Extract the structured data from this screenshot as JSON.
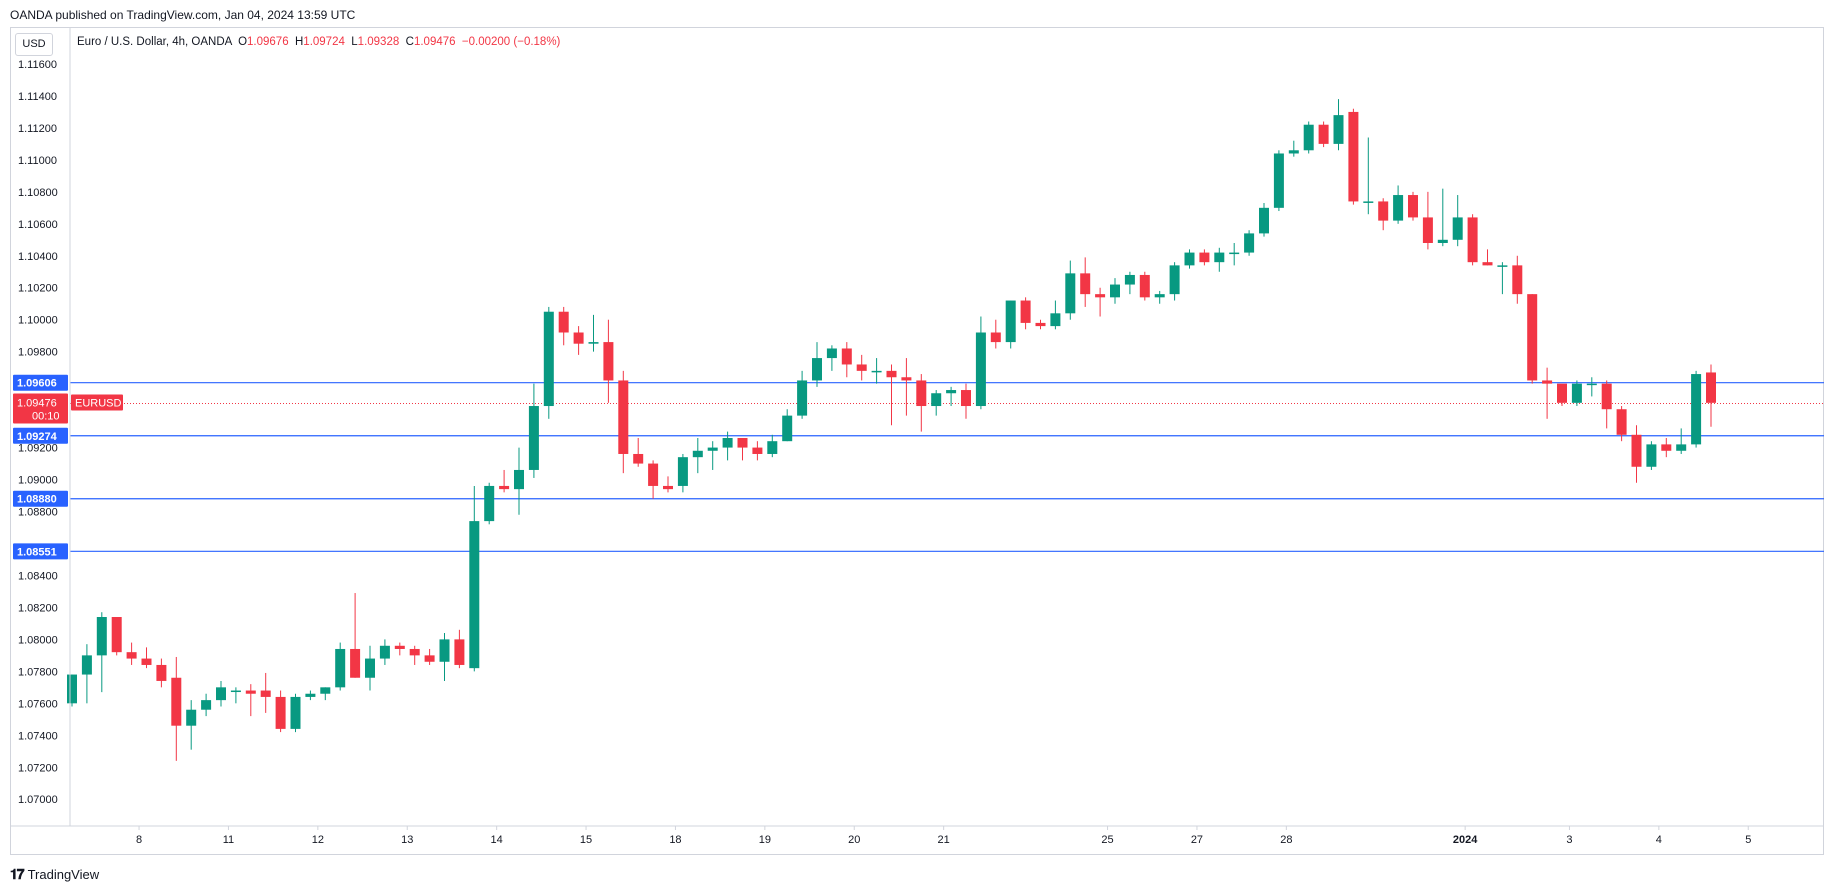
{
  "publisher_line": "OANDA published on TradingView.com, Jan 04, 2024 13:59 UTC",
  "currency_button": "USD",
  "legend": {
    "symbol": "Euro / U.S. Dollar, 4h, OANDA",
    "o_label": "O",
    "o_value": "1.09676",
    "h_label": "H",
    "h_value": "1.09724",
    "l_label": "L",
    "l_value": "1.09328",
    "c_label": "C",
    "c_value": "1.09476",
    "change": "−0.00200 (−0.18%)"
  },
  "footer": {
    "logo_icon": "tradingview-logo-icon",
    "brand": "TradingView"
  },
  "colors": {
    "up": "#089981",
    "down": "#f23645",
    "level_line": "#2962ff",
    "level_label_bg": "#2962ff",
    "price_label_bg": "#f23645"
  },
  "chart_data": {
    "type": "candlestick",
    "title": "Euro / U.S. Dollar, 4h, OANDA",
    "ylim": [
      1.0687,
      1.1175
    ],
    "y_ticks": [
      "1.11600",
      "1.11400",
      "1.11200",
      "1.11000",
      "1.10800",
      "1.10600",
      "1.10400",
      "1.10200",
      "1.10000",
      "1.09800",
      "1.09200",
      "1.09000",
      "1.08800",
      "1.08400",
      "1.08200",
      "1.08000",
      "1.07800",
      "1.07600",
      "1.07400",
      "1.07200",
      "1.07000"
    ],
    "x_ticks": [
      {
        "label": "8",
        "idx": 4.5
      },
      {
        "label": "11",
        "idx": 10.5
      },
      {
        "label": "12",
        "idx": 16.5
      },
      {
        "label": "13",
        "idx": 22.5
      },
      {
        "label": "14",
        "idx": 28.5
      },
      {
        "label": "15",
        "idx": 34.5
      },
      {
        "label": "18",
        "idx": 40.5
      },
      {
        "label": "19",
        "idx": 46.5
      },
      {
        "label": "20",
        "idx": 52.5
      },
      {
        "label": "21",
        "idx": 58.5
      },
      {
        "label": "25",
        "idx": 69.5
      },
      {
        "label": "27",
        "idx": 75.5
      },
      {
        "label": "28",
        "idx": 81.5
      },
      {
        "label": "2024",
        "idx": 93.5,
        "bold": true
      },
      {
        "label": "3",
        "idx": 100.5
      },
      {
        "label": "4",
        "idx": 106.5
      },
      {
        "label": "5",
        "idx": 112.5
      }
    ],
    "horizontal_levels": [
      {
        "label": "1.09606",
        "value": 1.09606
      },
      {
        "label": "1.09274",
        "value": 1.09274
      },
      {
        "label": "1.08880",
        "value": 1.0888
      },
      {
        "label": "1.08551",
        "value": 1.08551
      }
    ],
    "current_price": {
      "label": "1.09476",
      "value": 1.09476,
      "countdown": "00:10",
      "symbol": "EURUSD"
    },
    "candles": [
      [
        1.076,
        1.0778,
        1.0758,
        1.0778
      ],
      [
        1.0778,
        1.0797,
        1.076,
        1.079
      ],
      [
        1.079,
        1.0817,
        1.0767,
        1.0814
      ],
      [
        1.0814,
        1.0812,
        1.079,
        1.0792
      ],
      [
        1.0792,
        1.0798,
        1.0784,
        1.0788
      ],
      [
        1.0788,
        1.0795,
        1.0782,
        1.0784
      ],
      [
        1.0784,
        1.0788,
        1.077,
        1.0774
      ],
      [
        1.0776,
        1.0789,
        1.0724,
        1.0746
      ],
      [
        1.0746,
        1.0762,
        1.0731,
        1.0756
      ],
      [
        1.0756,
        1.0766,
        1.0752,
        1.0762
      ],
      [
        1.0762,
        1.0774,
        1.0758,
        1.077
      ],
      [
        1.0768,
        1.077,
        1.076,
        1.0768
      ],
      [
        1.0768,
        1.0772,
        1.0752,
        1.0766
      ],
      [
        1.0768,
        1.0779,
        1.0754,
        1.0764
      ],
      [
        1.0764,
        1.0768,
        1.0742,
        1.0744
      ],
      [
        1.0744,
        1.0766,
        1.0742,
        1.0764
      ],
      [
        1.0764,
        1.0768,
        1.0762,
        1.0766
      ],
      [
        1.0766,
        1.077,
        1.0762,
        1.077
      ],
      [
        1.077,
        1.0798,
        1.0768,
        1.0794
      ],
      [
        1.0794,
        1.0829,
        1.0776,
        1.0776
      ],
      [
        1.0776,
        1.0796,
        1.0768,
        1.0788
      ],
      [
        1.0788,
        1.08,
        1.0784,
        1.0796
      ],
      [
        1.0796,
        1.0798,
        1.079,
        1.0794
      ],
      [
        1.0794,
        1.0796,
        1.0784,
        1.079
      ],
      [
        1.079,
        1.0794,
        1.0784,
        1.0786
      ],
      [
        1.0786,
        1.0804,
        1.0774,
        1.08
      ],
      [
        1.08,
        1.0806,
        1.0782,
        1.0784
      ],
      [
        1.0782,
        1.0896,
        1.078,
        1.0874
      ],
      [
        1.0874,
        1.0898,
        1.0872,
        1.0896
      ],
      [
        1.0896,
        1.0906,
        1.0892,
        1.0894
      ],
      [
        1.0894,
        1.092,
        1.0878,
        1.0906
      ],
      [
        1.0906,
        1.096,
        1.0901,
        1.0946
      ],
      [
        1.0946,
        1.1008,
        1.0938,
        1.1005
      ],
      [
        1.1005,
        1.1008,
        1.0984,
        1.0992
      ],
      [
        1.0992,
        1.0996,
        1.0978,
        1.0985
      ],
      [
        1.0985,
        1.1003,
        1.098,
        1.0986
      ],
      [
        1.0986,
        1.1,
        1.0948,
        1.0962
      ],
      [
        1.0962,
        1.0968,
        1.0904,
        1.0916
      ],
      [
        1.0916,
        1.0926,
        1.0908,
        1.091
      ],
      [
        1.091,
        1.0912,
        1.0888,
        1.0896
      ],
      [
        1.0896,
        1.0902,
        1.0892,
        1.0894
      ],
      [
        1.0896,
        1.0916,
        1.0892,
        1.0914
      ],
      [
        1.0914,
        1.0926,
        1.0904,
        1.0918
      ],
      [
        1.0918,
        1.0924,
        1.0906,
        1.092
      ],
      [
        1.092,
        1.093,
        1.0912,
        1.0926
      ],
      [
        1.0926,
        1.0926,
        1.0912,
        1.092
      ],
      [
        1.092,
        1.0924,
        1.0912,
        1.0916
      ],
      [
        1.0916,
        1.0928,
        1.0914,
        1.0924
      ],
      [
        1.0924,
        1.0944,
        1.0924,
        1.094
      ],
      [
        1.094,
        1.0968,
        1.0938,
        1.0962
      ],
      [
        1.0962,
        1.0986,
        1.0958,
        1.0976
      ],
      [
        1.0976,
        1.0984,
        1.0968,
        1.0982
      ],
      [
        1.0982,
        1.0986,
        1.0964,
        1.0972
      ],
      [
        1.0972,
        1.0978,
        1.0962,
        1.0968
      ],
      [
        1.0968,
        1.0976,
        1.096,
        1.0968
      ],
      [
        1.0968,
        1.0972,
        1.0934,
        1.0964
      ],
      [
        1.0964,
        1.0976,
        1.094,
        1.0962
      ],
      [
        1.0962,
        1.0966,
        1.093,
        1.0946
      ],
      [
        1.0946,
        1.0956,
        1.094,
        1.0954
      ],
      [
        1.0954,
        1.0958,
        1.0946,
        1.0956
      ],
      [
        1.0956,
        1.096,
        1.0938,
        1.0946
      ],
      [
        1.0946,
        1.1002,
        1.0944,
        1.0992
      ],
      [
        1.0992,
        1.1,
        1.0982,
        1.0986
      ],
      [
        1.0986,
        1.1012,
        1.0982,
        1.1012
      ],
      [
        1.1012,
        1.1014,
        1.0994,
        1.0998
      ],
      [
        1.0998,
        1.1,
        1.0994,
        1.0996
      ],
      [
        1.0996,
        1.1012,
        1.0994,
        1.1004
      ],
      [
        1.1004,
        1.1037,
        1.1,
        1.1029
      ],
      [
        1.1029,
        1.1039,
        1.1008,
        1.1016
      ],
      [
        1.1016,
        1.102,
        1.1002,
        1.1014
      ],
      [
        1.1014,
        1.1026,
        1.101,
        1.1022
      ],
      [
        1.1022,
        1.103,
        1.1016,
        1.1028
      ],
      [
        1.1028,
        1.103,
        1.1012,
        1.1014
      ],
      [
        1.1014,
        1.1018,
        1.101,
        1.1016
      ],
      [
        1.1016,
        1.1036,
        1.1012,
        1.1034
      ],
      [
        1.1034,
        1.1044,
        1.1032,
        1.1042
      ],
      [
        1.1042,
        1.1044,
        1.1034,
        1.1036
      ],
      [
        1.1036,
        1.1045,
        1.103,
        1.1042
      ],
      [
        1.1042,
        1.1048,
        1.1034,
        1.1042
      ],
      [
        1.1042,
        1.1056,
        1.104,
        1.1054
      ],
      [
        1.1054,
        1.1073,
        1.1052,
        1.107
      ],
      [
        1.107,
        1.1106,
        1.1068,
        1.1104
      ],
      [
        1.1104,
        1.1112,
        1.1102,
        1.1106
      ],
      [
        1.1106,
        1.1124,
        1.1104,
        1.1122
      ],
      [
        1.1122,
        1.1124,
        1.1108,
        1.111
      ],
      [
        1.111,
        1.1138,
        1.1106,
        1.1128
      ],
      [
        1.113,
        1.1132,
        1.1072,
        1.1074
      ],
      [
        1.1074,
        1.1114,
        1.1066,
        1.1074
      ],
      [
        1.1074,
        1.1076,
        1.1056,
        1.1062
      ],
      [
        1.1062,
        1.1084,
        1.106,
        1.1078
      ],
      [
        1.1078,
        1.108,
        1.1062,
        1.1064
      ],
      [
        1.1064,
        1.108,
        1.1044,
        1.1048
      ],
      [
        1.1048,
        1.1082,
        1.1046,
        1.105
      ],
      [
        1.105,
        1.1078,
        1.1046,
        1.1064
      ],
      [
        1.1064,
        1.1066,
        1.1034,
        1.1036
      ],
      [
        1.1036,
        1.1044,
        1.1034,
        1.1034
      ],
      [
        1.1034,
        1.1036,
        1.1016,
        1.1034
      ],
      [
        1.1034,
        1.104,
        1.101,
        1.1016
      ],
      [
        1.1016,
        1.1016,
        1.096,
        1.0962
      ],
      [
        1.0962,
        1.097,
        1.0938,
        1.096
      ],
      [
        1.096,
        1.0958,
        1.0946,
        1.0948
      ],
      [
        1.0948,
        1.0962,
        1.0946,
        1.096
      ],
      [
        1.096,
        1.0964,
        1.0952,
        1.096
      ],
      [
        1.096,
        1.0962,
        1.0932,
        1.0944
      ],
      [
        1.0944,
        1.0946,
        1.0924,
        1.0928
      ],
      [
        1.0928,
        1.0934,
        1.0898,
        1.0908
      ],
      [
        1.0908,
        1.0924,
        1.0906,
        1.0922
      ],
      [
        1.0922,
        1.0926,
        1.0914,
        1.0918
      ],
      [
        1.0918,
        1.0932,
        1.0916,
        1.0922
      ],
      [
        1.0922,
        1.0968,
        1.092,
        1.0966
      ],
      [
        1.0967,
        1.0972,
        1.0933,
        1.0948
      ]
    ]
  }
}
